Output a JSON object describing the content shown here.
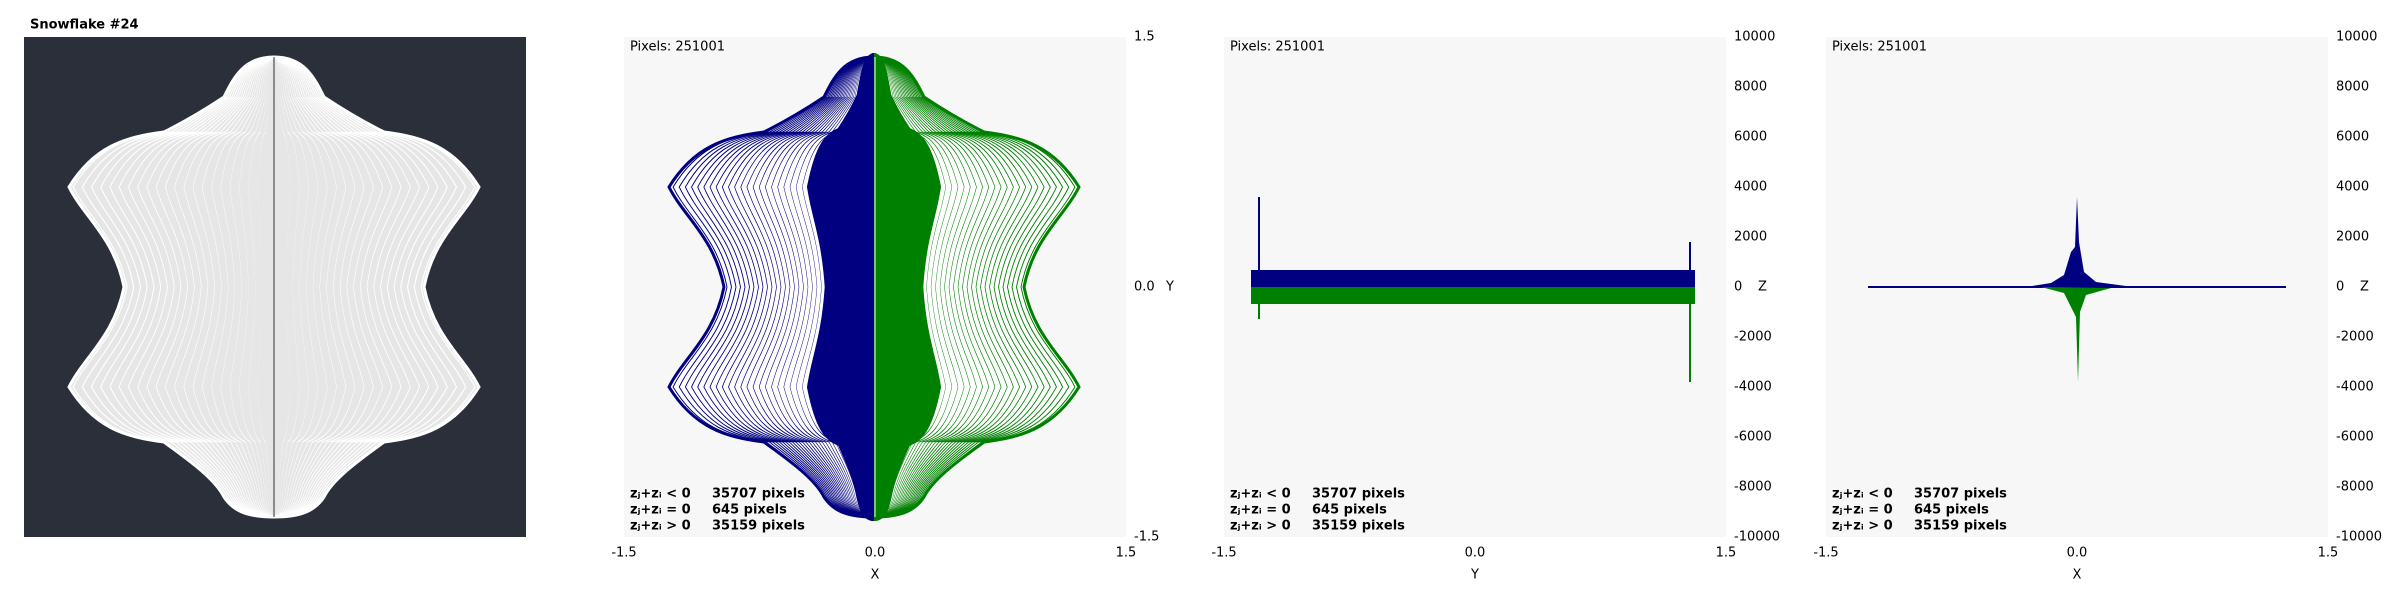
{
  "title": "Snowflake #24",
  "plots": [
    {
      "pixels": "Pixels: 251001",
      "legend": [
        {
          "label": "zⱼ+zᵢ < 0",
          "count": "35707 pixels"
        },
        {
          "label": "zⱼ+zᵢ = 0",
          "count": "645 pixels"
        },
        {
          "label": "zⱼ+zᵢ > 0",
          "count": "35159 pixels"
        }
      ],
      "x_ticks": [
        "-1.5",
        "0.0",
        "1.5"
      ],
      "x_axis": "X",
      "right_ticks": [
        "1.5",
        "0.0",
        "-1.5"
      ],
      "right_axis": "Y"
    },
    {
      "pixels": "Pixels: 251001",
      "legend": [
        {
          "label": "zⱼ+zᵢ < 0",
          "count": "35707 pixels"
        },
        {
          "label": "zⱼ+zᵢ = 0",
          "count": "645 pixels"
        },
        {
          "label": "zⱼ+zᵢ > 0",
          "count": "35159 pixels"
        }
      ],
      "x_ticks": [
        "-1.5",
        "0.0",
        "1.5"
      ],
      "x_axis": "Y",
      "right_ticks": [
        "10000",
        "8000",
        "6000",
        "4000",
        "2000",
        "0",
        "-2000",
        "-4000",
        "-6000",
        "-8000",
        "-10000"
      ],
      "right_axis": "Z"
    },
    {
      "pixels": "Pixels: 251001",
      "legend": [
        {
          "label": "zⱼ+zᵢ < 0",
          "count": "35707 pixels"
        },
        {
          "label": "zⱼ+zᵢ = 0",
          "count": "645 pixels"
        },
        {
          "label": "zⱼ+zᵢ > 0",
          "count": "35159 pixels"
        }
      ],
      "x_ticks": [
        "-1.5",
        "0.0",
        "1.5"
      ],
      "x_axis": "X",
      "right_ticks": [
        "10000",
        "8000",
        "6000",
        "4000",
        "2000",
        "0",
        "-2000",
        "-4000",
        "-6000",
        "-8000",
        "-10000"
      ],
      "right_axis": "Z"
    }
  ]
}
